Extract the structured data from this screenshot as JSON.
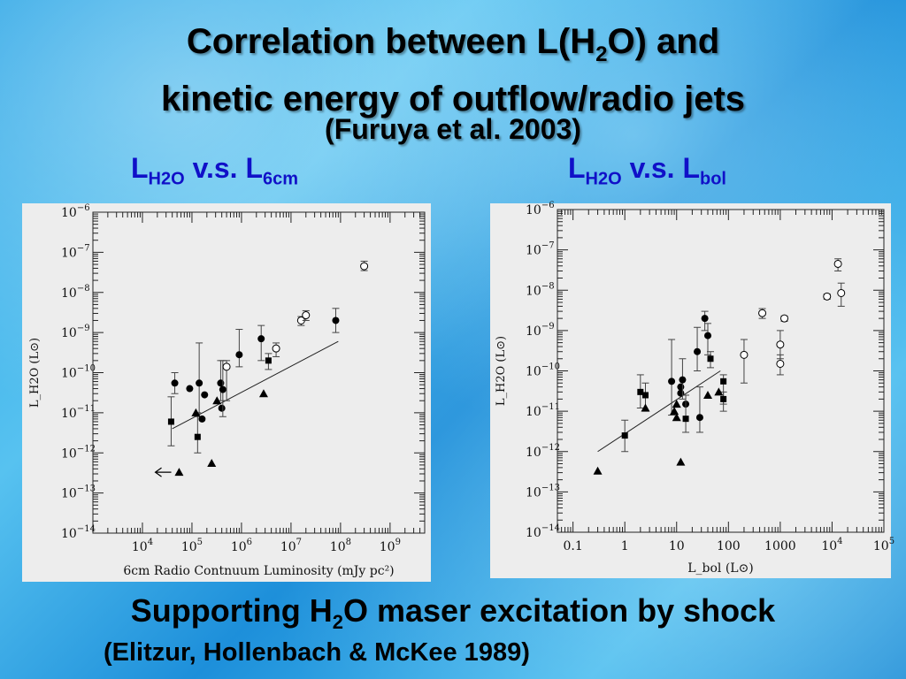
{
  "title": {
    "line1_pre": "Correlation between L(H",
    "line1_sub": "2",
    "line1_post": "O) and",
    "line2": "kinetic energy of outflow/radio jets",
    "citation": "(Furuya et al. 2003)"
  },
  "left_label": {
    "main": "L",
    "sub1": "H2O",
    "mid": " v.s. L",
    "sub2": "6cm"
  },
  "right_label": {
    "main": "L",
    "sub1": "H2O",
    "mid": " v.s. L",
    "sub2": "bol"
  },
  "footer": {
    "pre": "Supporting H",
    "sub": "2",
    "post": "O maser excitation by shock",
    "citation": "(Elitzur, Hollenbach & McKee 1989)"
  },
  "chart_data": [
    {
      "type": "scatter",
      "xscale": "log",
      "yscale": "log",
      "xlim": [
        1000,
        5000000000
      ],
      "ylim": [
        1e-14,
        1e-06
      ],
      "xticks": [
        {
          "v": 10000,
          "label": "10",
          "exp": "4"
        },
        {
          "v": 100000,
          "label": "10",
          "exp": "5"
        },
        {
          "v": 1000000,
          "label": "10",
          "exp": "6"
        },
        {
          "v": 10000000,
          "label": "10",
          "exp": "7"
        },
        {
          "v": 100000000,
          "label": "10",
          "exp": "8"
        },
        {
          "v": 1000000000,
          "label": "10",
          "exp": "9"
        }
      ],
      "yticks": [
        {
          "v": 1e-06,
          "label": "10",
          "exp": "−6"
        },
        {
          "v": 1e-07,
          "label": "10",
          "exp": "−7"
        },
        {
          "v": 1e-08,
          "label": "10",
          "exp": "−8"
        },
        {
          "v": 1e-09,
          "label": "10",
          "exp": "−9"
        },
        {
          "v": 1e-10,
          "label": "10",
          "exp": "−10"
        },
        {
          "v": 1e-11,
          "label": "10",
          "exp": "−11"
        },
        {
          "v": 1e-12,
          "label": "10",
          "exp": "−12"
        },
        {
          "v": 1e-13,
          "label": "10",
          "exp": "−13"
        },
        {
          "v": 1e-14,
          "label": "10",
          "exp": "−14"
        }
      ],
      "xlabel": "6cm Radio Contnuum Luminosity (mJy pc²)",
      "ylabel": "L_H2O (L⊙)",
      "fit_line": [
        [
          40000,
          4e-12
        ],
        [
          90000000,
          6e-10
        ]
      ],
      "points": [
        {
          "x": 45000,
          "y": 5.5e-11,
          "m": "circle-filled",
          "lo": 3e-11,
          "hi": 1e-10
        },
        {
          "x": 90000,
          "y": 4e-11,
          "m": "circle-filled"
        },
        {
          "x": 140000,
          "y": 5.5e-11,
          "m": "circle-filled",
          "lo": 8e-12,
          "hi": 5.5e-10
        },
        {
          "x": 180000,
          "y": 2.8e-11,
          "m": "circle-filled"
        },
        {
          "x": 160000,
          "y": 7e-12,
          "m": "circle-filled"
        },
        {
          "x": 380000,
          "y": 5.5e-11,
          "m": "circle-filled",
          "lo": 2e-11,
          "hi": 2e-10
        },
        {
          "x": 400000,
          "y": 1.3e-11,
          "m": "circle-filled"
        },
        {
          "x": 420000,
          "y": 3.8e-11,
          "m": "circle-filled",
          "lo": 8e-12,
          "hi": 2e-10
        },
        {
          "x": 900000,
          "y": 2.8e-10,
          "m": "circle-filled",
          "lo": 1.4e-10,
          "hi": 1.2e-09
        },
        {
          "x": 2500000,
          "y": 7e-10,
          "m": "circle-filled",
          "lo": 2e-10,
          "hi": 1.5e-09
        },
        {
          "x": 80000000,
          "y": 2e-09,
          "m": "circle-filled",
          "lo": 1e-09,
          "hi": 4e-09
        },
        {
          "x": 500000,
          "y": 1.4e-10,
          "m": "circle-open",
          "lo": 2e-11,
          "hi": 2e-10
        },
        {
          "x": 5000000,
          "y": 4e-10,
          "m": "circle-open",
          "lo": 2.5e-10,
          "hi": 5.5e-10
        },
        {
          "x": 16000000,
          "y": 2e-09,
          "m": "circle-open",
          "lo": 1.5e-09,
          "hi": 2.5e-09
        },
        {
          "x": 20000000,
          "y": 2.7e-09,
          "m": "circle-open",
          "lo": 2e-09,
          "hi": 3.5e-09
        },
        {
          "x": 300000000,
          "y": 4.5e-08,
          "m": "circle-open",
          "lo": 3.5e-08,
          "hi": 6e-08
        },
        {
          "x": 38000,
          "y": 6e-12,
          "m": "square-filled",
          "lo": 1.5e-12,
          "hi": 2.5e-11
        },
        {
          "x": 130000,
          "y": 2.5e-12,
          "m": "square-filled",
          "lo": 1e-12,
          "hi": 1e-11
        },
        {
          "x": 3500000,
          "y": 2e-10,
          "m": "square-filled",
          "lo": 1.2e-10,
          "hi": 3e-10
        },
        {
          "x": 120000,
          "y": 1e-11,
          "m": "triangle-filled"
        },
        {
          "x": 250000,
          "y": 5.5e-13,
          "m": "triangle-filled"
        },
        {
          "x": 320000,
          "y": 2e-11,
          "m": "triangle-filled"
        },
        {
          "x": 2800000,
          "y": 3e-11,
          "m": "triangle-filled"
        },
        {
          "x": 55000,
          "y": 3.3e-13,
          "m": "triangle-filled"
        }
      ],
      "upper_limit_arrow": {
        "x": 45000,
        "y": 3.3e-13
      }
    },
    {
      "type": "scatter",
      "xscale": "log",
      "yscale": "log",
      "xlim": [
        0.05,
        100000
      ],
      "ylim": [
        1e-14,
        1e-06
      ],
      "xticks": [
        {
          "v": 0.1,
          "label": "0.1",
          "exp": ""
        },
        {
          "v": 1,
          "label": "1",
          "exp": ""
        },
        {
          "v": 10,
          "label": "10",
          "exp": ""
        },
        {
          "v": 100,
          "label": "100",
          "exp": ""
        },
        {
          "v": 1000,
          "label": "1000",
          "exp": ""
        },
        {
          "v": 10000,
          "label": "10",
          "exp": "4"
        },
        {
          "v": 100000,
          "label": "10",
          "exp": "5"
        }
      ],
      "yticks": [
        {
          "v": 1e-06,
          "label": "10",
          "exp": "−6"
        },
        {
          "v": 1e-07,
          "label": "10",
          "exp": "−7"
        },
        {
          "v": 1e-08,
          "label": "10",
          "exp": "−8"
        },
        {
          "v": 1e-09,
          "label": "10",
          "exp": "−9"
        },
        {
          "v": 1e-10,
          "label": "10",
          "exp": "−10"
        },
        {
          "v": 1e-11,
          "label": "10",
          "exp": "−11"
        },
        {
          "v": 1e-12,
          "label": "10",
          "exp": "−12"
        },
        {
          "v": 1e-13,
          "label": "10",
          "exp": "−13"
        },
        {
          "v": 1e-14,
          "label": "10",
          "exp": "−14"
        }
      ],
      "xlabel": "L_bol (L⊙)",
      "ylabel": "L_H2O (L⊙)",
      "fit_line": [
        [
          0.3,
          1e-12
        ],
        [
          70,
          1e-10
        ]
      ],
      "points": [
        {
          "x": 8,
          "y": 5.5e-11,
          "m": "circle-filled",
          "lo": 8e-12,
          "hi": 6e-10
        },
        {
          "x": 12,
          "y": 4e-11,
          "m": "circle-filled"
        },
        {
          "x": 12,
          "y": 2.8e-11,
          "m": "circle-filled"
        },
        {
          "x": 13,
          "y": 6e-11,
          "m": "circle-filled",
          "lo": 2e-11,
          "hi": 2e-10
        },
        {
          "x": 25,
          "y": 3e-10,
          "m": "circle-filled",
          "lo": 1e-10,
          "hi": 1.2e-09
        },
        {
          "x": 35,
          "y": 2e-09,
          "m": "circle-filled",
          "lo": 1e-09,
          "hi": 3e-09
        },
        {
          "x": 40,
          "y": 7.5e-10,
          "m": "circle-filled",
          "lo": 2.5e-10,
          "hi": 1.5e-09
        },
        {
          "x": 28,
          "y": 7e-12,
          "m": "circle-filled",
          "lo": 3e-12,
          "hi": 4e-11
        },
        {
          "x": 15,
          "y": 1.5e-11,
          "m": "circle-filled"
        },
        {
          "x": 200,
          "y": 2.5e-10,
          "m": "circle-open",
          "lo": 5e-11,
          "hi": 6e-10
        },
        {
          "x": 450,
          "y": 2.7e-09,
          "m": "circle-open",
          "lo": 2e-09,
          "hi": 3.5e-09
        },
        {
          "x": 1000,
          "y": 4.5e-10,
          "m": "circle-open",
          "lo": 2e-10,
          "hi": 1e-09
        },
        {
          "x": 1000,
          "y": 1.5e-10,
          "m": "circle-open",
          "lo": 8e-11,
          "hi": 2.5e-10
        },
        {
          "x": 1200,
          "y": 2e-09,
          "m": "circle-open",
          "lo": 1.7e-09,
          "hi": 2.3e-09
        },
        {
          "x": 8000,
          "y": 7e-09,
          "m": "circle-open",
          "lo": 6e-09,
          "hi": 8e-09
        },
        {
          "x": 13000,
          "y": 4.5e-08,
          "m": "circle-open",
          "lo": 3e-08,
          "hi": 6e-08
        },
        {
          "x": 15000,
          "y": 8.5e-09,
          "m": "circle-open",
          "lo": 4e-09,
          "hi": 1.5e-08
        },
        {
          "x": 1,
          "y": 2.5e-12,
          "m": "square-filled",
          "lo": 1e-12,
          "hi": 6e-12
        },
        {
          "x": 2,
          "y": 3e-11,
          "m": "square-filled",
          "lo": 1.2e-11,
          "hi": 8e-11
        },
        {
          "x": 2.5,
          "y": 2.5e-11,
          "m": "square-filled",
          "lo": 1e-11,
          "hi": 5e-11
        },
        {
          "x": 15,
          "y": 6.5e-12,
          "m": "square-filled",
          "lo": 3e-12,
          "hi": 2.5e-11
        },
        {
          "x": 45,
          "y": 2e-10,
          "m": "square-filled",
          "lo": 1.2e-10,
          "hi": 3e-10
        },
        {
          "x": 80,
          "y": 5.5e-11,
          "m": "square-filled",
          "lo": 1.5e-11,
          "hi": 8e-11
        },
        {
          "x": 80,
          "y": 2e-11,
          "m": "square-filled",
          "lo": 1e-11,
          "hi": 3e-11
        },
        {
          "x": 0.3,
          "y": 3.3e-13,
          "m": "triangle-filled"
        },
        {
          "x": 2.5,
          "y": 1.2e-11,
          "m": "triangle-filled"
        },
        {
          "x": 9,
          "y": 1e-11,
          "m": "triangle-filled"
        },
        {
          "x": 10,
          "y": 7e-12,
          "m": "triangle-filled"
        },
        {
          "x": 10,
          "y": 1.5e-11,
          "m": "triangle-filled"
        },
        {
          "x": 12,
          "y": 5.5e-13,
          "m": "triangle-filled"
        },
        {
          "x": 40,
          "y": 2.5e-11,
          "m": "triangle-filled"
        },
        {
          "x": 65,
          "y": 3e-11,
          "m": "triangle-filled"
        }
      ]
    }
  ]
}
